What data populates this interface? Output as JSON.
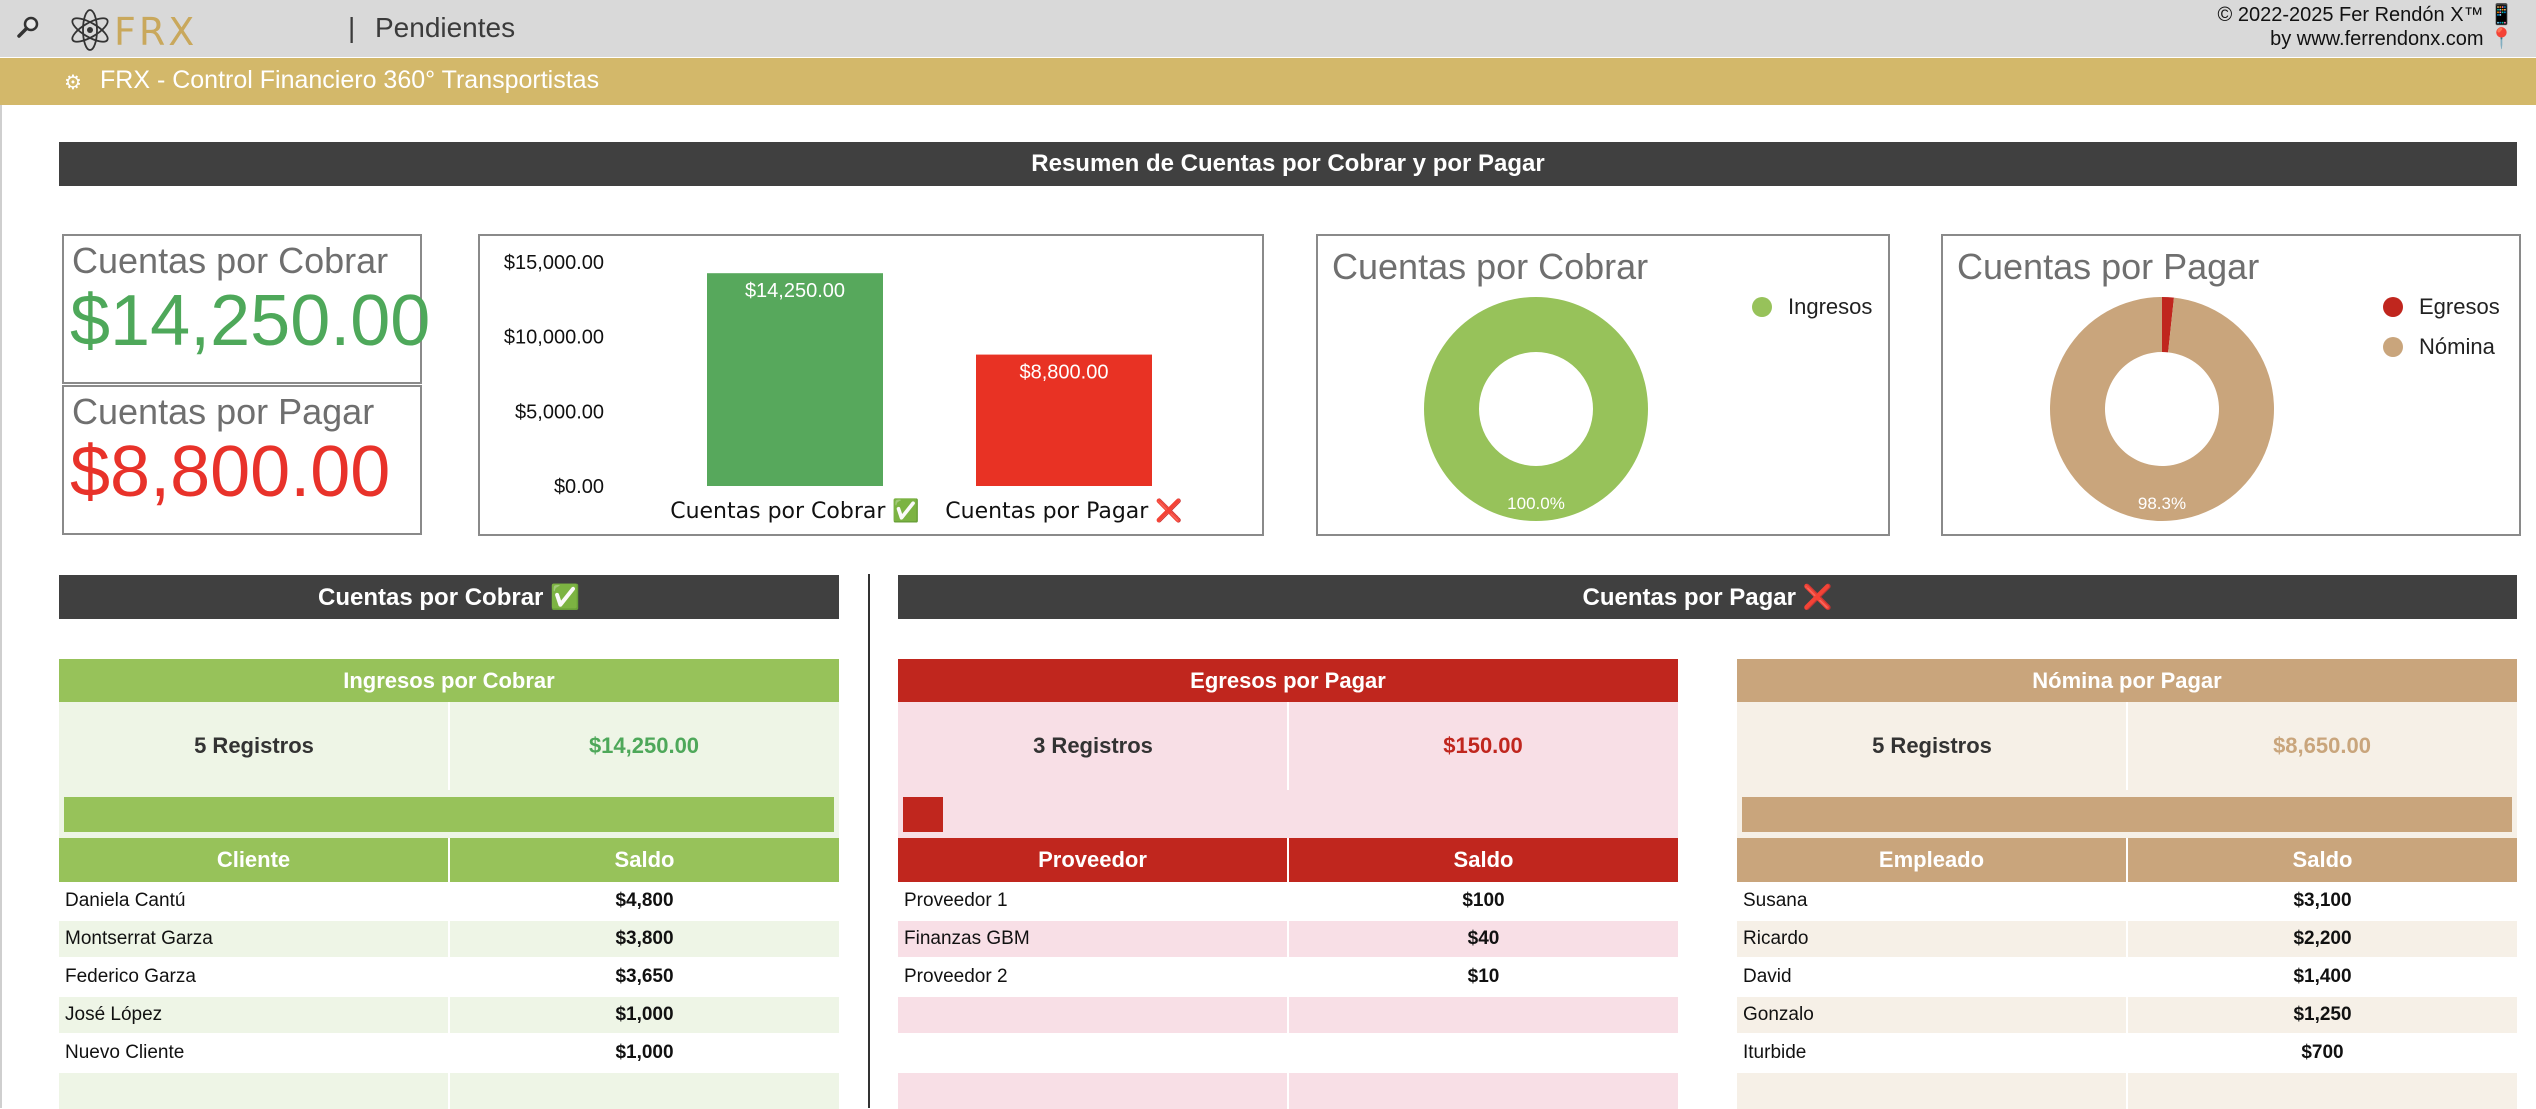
{
  "app": {
    "page_title": "Pendientes",
    "separator": "|",
    "banner_title": "FRX - Control Financiero 360° Transportistas",
    "copyright_line1": "© 2022-2025 Fer Rendón X™ 📱",
    "copyright_line2": "by www.ferrendonx.com 📍",
    "logo_text": "FRX"
  },
  "summary": {
    "header": "Resumen de Cuentas por Cobrar y por Pagar",
    "kpi_cobrar": {
      "label": "Cuentas por Cobrar",
      "value": "$14,250.00",
      "color": "#4ea85a"
    },
    "kpi_pagar": {
      "label": "Cuentas por Pagar",
      "value": "$8,800.00",
      "color": "#e8322a"
    }
  },
  "chart_data": [
    {
      "type": "bar",
      "categories": [
        "Cuentas por Cobrar ✅",
        "Cuentas por Pagar ❌"
      ],
      "values": [
        14250,
        8800
      ],
      "data_labels": [
        "$14,250.00",
        "$8,800.00"
      ],
      "colors": [
        "#57a85c",
        "#e83224"
      ],
      "yticks": [
        "$15,000.00",
        "$10,000.00",
        "$5,000.00",
        "$0.00"
      ],
      "ylim": [
        0,
        15000
      ],
      "title": "",
      "xlabel": "",
      "ylabel": ""
    },
    {
      "type": "pie",
      "title": "Cuentas por Cobrar",
      "labels": [
        "Ingresos"
      ],
      "values": [
        14250
      ],
      "colors": [
        "#97c25a"
      ],
      "data_labels": [
        "100.0%"
      ],
      "legend": "top-right"
    },
    {
      "type": "pie",
      "title": "Cuentas por Pagar",
      "labels": [
        "Egresos",
        "Nómina"
      ],
      "values": [
        150,
        8650
      ],
      "colors": [
        "#c0261e",
        "#c9a57c"
      ],
      "data_labels": [
        "",
        "98.3%"
      ],
      "legend": "top-right"
    }
  ],
  "cobrar": {
    "header": "Cuentas por Cobrar ✅",
    "ingresos": {
      "title": "Ingresos por Cobrar",
      "count": "5 Registros",
      "total": "$14,250.00",
      "progress": 1.0,
      "col_name": "Cliente",
      "col_saldo": "Saldo",
      "rows": [
        {
          "name": "Daniela Cantú",
          "saldo": "$4,800"
        },
        {
          "name": "Montserrat Garza",
          "saldo": "$3,800"
        },
        {
          "name": "Federico Garza",
          "saldo": "$3,650"
        },
        {
          "name": "José López",
          "saldo": "$1,000"
        },
        {
          "name": "Nuevo Cliente",
          "saldo": "$1,000"
        }
      ]
    }
  },
  "pagar": {
    "header": "Cuentas por Pagar ❌",
    "egresos": {
      "title": "Egresos por Pagar",
      "count": "3 Registros",
      "total": "$150.00",
      "progress": 0.05,
      "col_name": "Proveedor",
      "col_saldo": "Saldo",
      "rows": [
        {
          "name": "Proveedor 1",
          "saldo": "$100"
        },
        {
          "name": "Finanzas GBM",
          "saldo": "$40"
        },
        {
          "name": "Proveedor 2",
          "saldo": "$10"
        }
      ]
    },
    "nomina": {
      "title": "Nómina por Pagar",
      "count": "5 Registros",
      "total": "$8,650.00",
      "progress": 1.0,
      "col_name": "Empleado",
      "col_saldo": "Saldo",
      "rows": [
        {
          "name": "Susana",
          "saldo": "$3,100"
        },
        {
          "name": "Ricardo",
          "saldo": "$2,200"
        },
        {
          "name": "David",
          "saldo": "$1,400"
        },
        {
          "name": "Gonzalo",
          "saldo": "$1,250"
        },
        {
          "name": "Iturbide",
          "saldo": "$700"
        }
      ]
    }
  }
}
